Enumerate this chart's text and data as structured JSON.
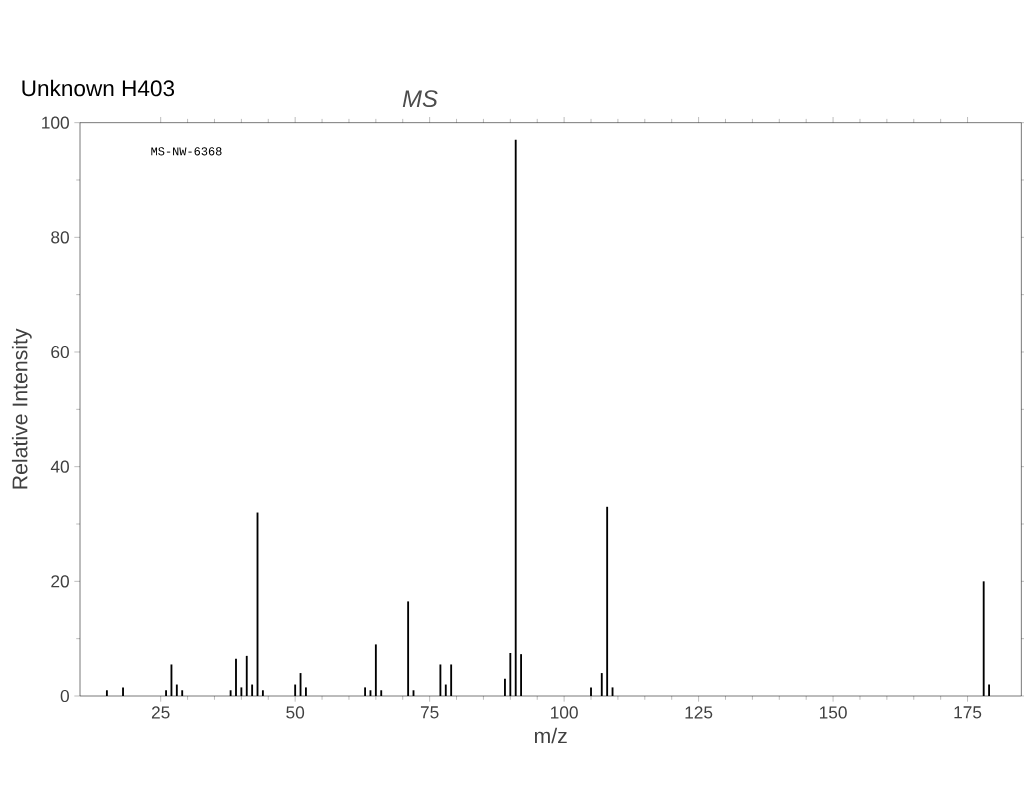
{
  "chart_data": {
    "type": "bar",
    "title": "Unknown H403",
    "xlabel": "m/z",
    "ylabel": "Relative Intensity",
    "annotations": [
      "MS",
      "MS-NW-6368"
    ],
    "x": [
      15,
      18,
      26,
      27,
      28,
      29,
      38,
      39,
      40,
      41,
      42,
      43,
      44,
      50,
      51,
      52,
      63,
      64,
      65,
      66,
      71,
      72,
      77,
      78,
      79,
      89,
      90,
      91,
      92,
      105,
      107,
      108,
      109,
      178,
      179
    ],
    "values": [
      1,
      1.5,
      1,
      5.5,
      2,
      1,
      1,
      6.5,
      1.5,
      7,
      2,
      32,
      1,
      2,
      4,
      1.5,
      1.5,
      1,
      9,
      1,
      16.5,
      1,
      5.5,
      2,
      5.5,
      3,
      7.5,
      97,
      7.3,
      1.5,
      4,
      33,
      1.5,
      20,
      2
    ],
    "color": "#000000",
    "xlim": [
      10,
      185
    ],
    "xticks": [
      25,
      50,
      75,
      100,
      125,
      150,
      175
    ],
    "ylim": [
      0,
      100
    ],
    "yticks": [
      0,
      20,
      40,
      60,
      80,
      100
    ]
  }
}
